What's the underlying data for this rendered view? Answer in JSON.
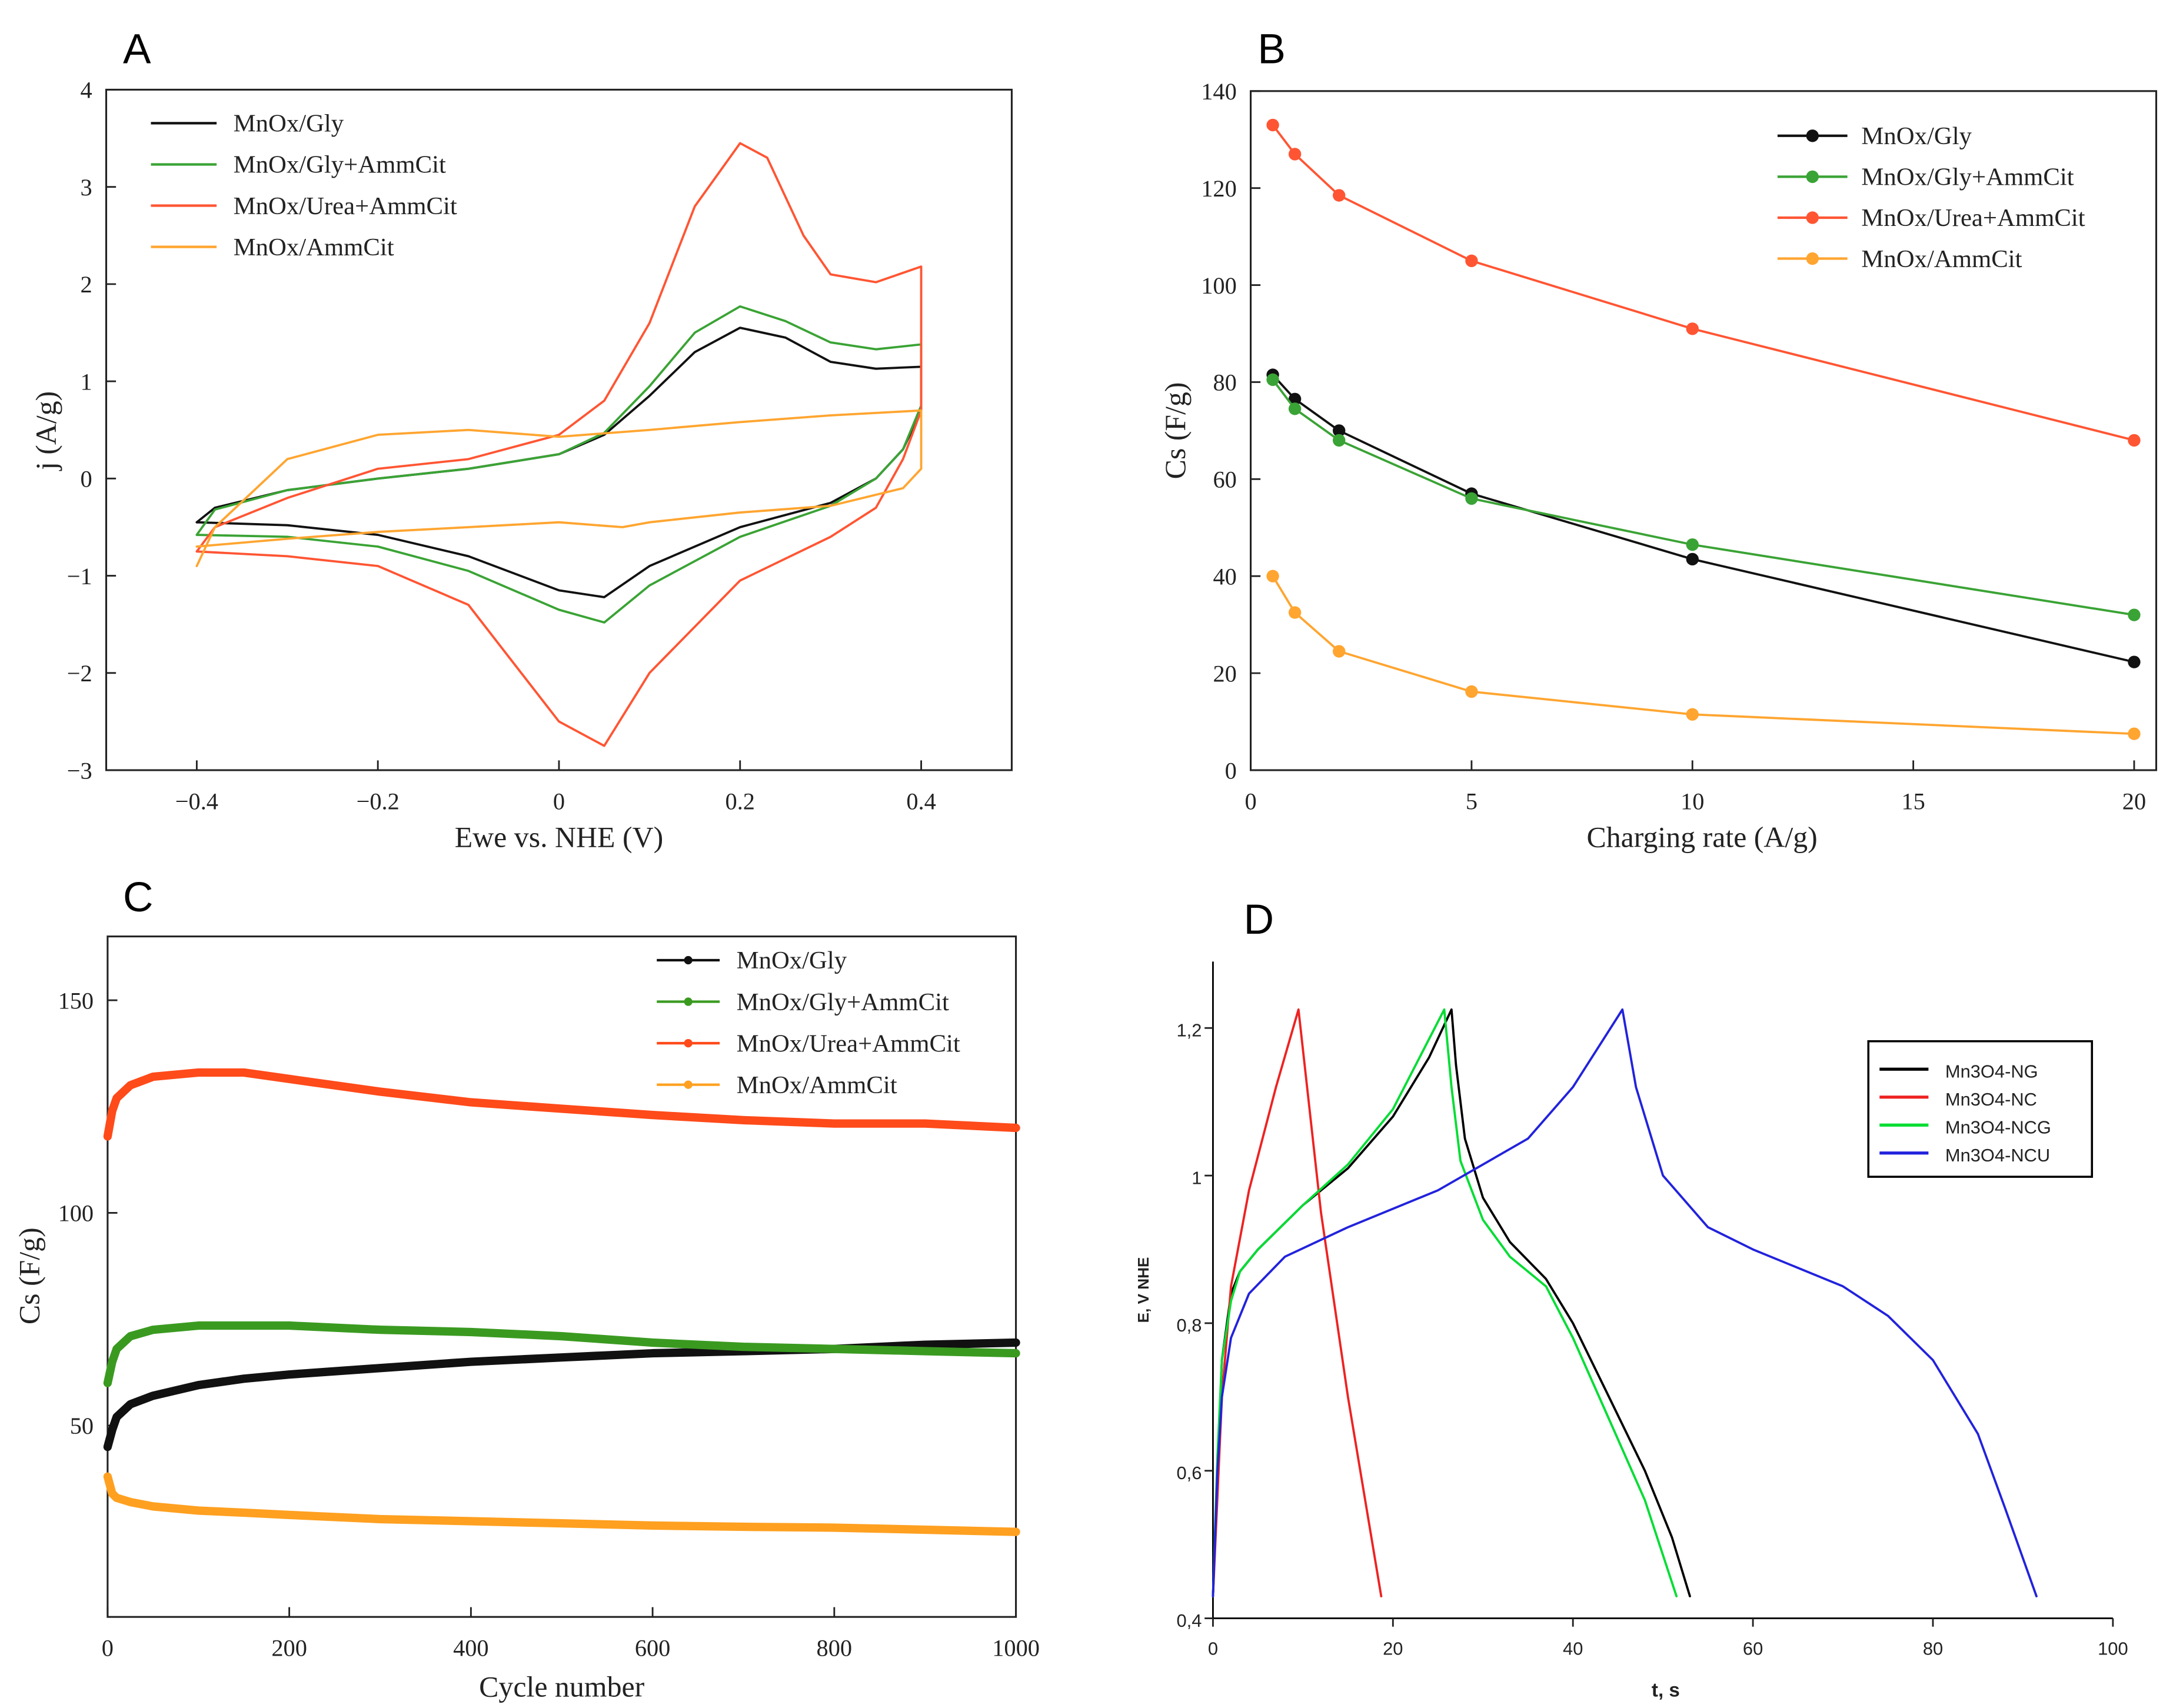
{
  "chart_data": [
    {
      "panel_label": "A",
      "type": "line",
      "xlabel": "Ewe vs. NHE (V)",
      "ylabel": "j (A/g)",
      "xlim": [
        -0.5,
        0.5
      ],
      "ylim": [
        -3,
        4
      ],
      "xticks": [
        -0.4,
        -0.2,
        0,
        0.2,
        0.4
      ],
      "xtick_labels": [
        "−0.4",
        "−0.2",
        "0",
        "0.2",
        "0.4"
      ],
      "yticks": [
        -3,
        -2,
        -1,
        0,
        1,
        2,
        3,
        4
      ],
      "ytick_labels": [
        "−3",
        "−2",
        "−1",
        "0",
        "1",
        "2",
        "3",
        "4"
      ],
      "grid": false,
      "legend": "top-left",
      "series": [
        {
          "name": "MnOx/Gly",
          "color": "#111111",
          "points": [
            [
              -0.4,
              -0.45
            ],
            [
              -0.38,
              -0.3
            ],
            [
              -0.3,
              -0.12
            ],
            [
              -0.2,
              0
            ],
            [
              -0.1,
              0.1
            ],
            [
              0,
              0.25
            ],
            [
              0.05,
              0.45
            ],
            [
              0.1,
              0.85
            ],
            [
              0.15,
              1.3
            ],
            [
              0.2,
              1.55
            ],
            [
              0.25,
              1.45
            ],
            [
              0.3,
              1.2
            ],
            [
              0.35,
              1.13
            ],
            [
              0.4,
              1.15
            ],
            [
              0.4,
              0.7
            ],
            [
              0.38,
              0.3
            ],
            [
              0.35,
              0
            ],
            [
              0.3,
              -0.25
            ],
            [
              0.2,
              -0.5
            ],
            [
              0.1,
              -0.9
            ],
            [
              0.05,
              -1.22
            ],
            [
              0,
              -1.15
            ],
            [
              -0.1,
              -0.8
            ],
            [
              -0.2,
              -0.58
            ],
            [
              -0.3,
              -0.48
            ],
            [
              -0.4,
              -0.45
            ]
          ]
        },
        {
          "name": "MnOx/Gly+AmmCit",
          "color": "#3aa335",
          "points": [
            [
              -0.4,
              -0.58
            ],
            [
              -0.38,
              -0.32
            ],
            [
              -0.3,
              -0.12
            ],
            [
              -0.2,
              0
            ],
            [
              -0.1,
              0.1
            ],
            [
              0,
              0.25
            ],
            [
              0.05,
              0.47
            ],
            [
              0.1,
              0.95
            ],
            [
              0.15,
              1.5
            ],
            [
              0.2,
              1.77
            ],
            [
              0.25,
              1.62
            ],
            [
              0.3,
              1.4
            ],
            [
              0.35,
              1.33
            ],
            [
              0.4,
              1.38
            ],
            [
              0.4,
              0.75
            ],
            [
              0.38,
              0.3
            ],
            [
              0.35,
              0
            ],
            [
              0.3,
              -0.28
            ],
            [
              0.2,
              -0.6
            ],
            [
              0.1,
              -1.1
            ],
            [
              0.05,
              -1.48
            ],
            [
              0,
              -1.35
            ],
            [
              -0.1,
              -0.95
            ],
            [
              -0.2,
              -0.7
            ],
            [
              -0.3,
              -0.6
            ],
            [
              -0.4,
              -0.58
            ]
          ]
        },
        {
          "name": "MnOx/Urea+AmmCit",
          "color": "#ff5533",
          "points": [
            [
              -0.4,
              -0.75
            ],
            [
              -0.38,
              -0.5
            ],
            [
              -0.3,
              -0.2
            ],
            [
              -0.2,
              0.1
            ],
            [
              -0.1,
              0.2
            ],
            [
              0,
              0.45
            ],
            [
              0.05,
              0.8
            ],
            [
              0.1,
              1.6
            ],
            [
              0.15,
              2.8
            ],
            [
              0.2,
              3.45
            ],
            [
              0.23,
              3.3
            ],
            [
              0.27,
              2.5
            ],
            [
              0.3,
              2.1
            ],
            [
              0.35,
              2.02
            ],
            [
              0.4,
              2.18
            ],
            [
              0.4,
              0.7
            ],
            [
              0.38,
              0.2
            ],
            [
              0.35,
              -0.3
            ],
            [
              0.3,
              -0.6
            ],
            [
              0.2,
              -1.05
            ],
            [
              0.1,
              -2.0
            ],
            [
              0.05,
              -2.75
            ],
            [
              0,
              -2.5
            ],
            [
              -0.05,
              -1.9
            ],
            [
              -0.1,
              -1.3
            ],
            [
              -0.2,
              -0.9
            ],
            [
              -0.3,
              -0.8
            ],
            [
              -0.4,
              -0.75
            ]
          ]
        },
        {
          "name": "MnOx/AmmCit",
          "color": "#ffa530",
          "points": [
            [
              -0.4,
              -0.9
            ],
            [
              -0.38,
              -0.5
            ],
            [
              -0.3,
              0.2
            ],
            [
              -0.2,
              0.45
            ],
            [
              -0.1,
              0.5
            ],
            [
              0,
              0.43
            ],
            [
              0.1,
              0.5
            ],
            [
              0.2,
              0.58
            ],
            [
              0.3,
              0.65
            ],
            [
              0.4,
              0.7
            ],
            [
              0.4,
              0.1
            ],
            [
              0.38,
              -0.1
            ],
            [
              0.3,
              -0.28
            ],
            [
              0.2,
              -0.35
            ],
            [
              0.1,
              -0.45
            ],
            [
              0.07,
              -0.5
            ],
            [
              0,
              -0.45
            ],
            [
              -0.1,
              -0.5
            ],
            [
              -0.2,
              -0.55
            ],
            [
              -0.3,
              -0.62
            ],
            [
              -0.4,
              -0.7
            ]
          ]
        }
      ]
    },
    {
      "panel_label": "B",
      "type": "line",
      "xlabel": "Charging rate (A/g)",
      "ylabel": "Cs (F/g)",
      "xlim": [
        0,
        20.5
      ],
      "ylim": [
        0,
        140
      ],
      "xticks": [
        0,
        5,
        10,
        15,
        20
      ],
      "xtick_labels": [
        "0",
        "5",
        "10",
        "15",
        "20"
      ],
      "yticks": [
        0,
        20,
        40,
        60,
        80,
        100,
        120,
        140
      ],
      "ytick_labels": [
        "0",
        "20",
        "40",
        "60",
        "80",
        "100",
        "120",
        "140"
      ],
      "grid": false,
      "legend": "top-right",
      "x": [
        0.5,
        1,
        2,
        5,
        10,
        20
      ],
      "series": [
        {
          "name": "MnOx/Gly",
          "color": "#111111",
          "values": [
            81.5,
            76.5,
            70,
            57,
            43.5,
            22.3
          ]
        },
        {
          "name": "MnOx/Gly+AmmCit",
          "color": "#3aa335",
          "values": [
            80.5,
            74.5,
            68,
            56,
            46.5,
            32
          ]
        },
        {
          "name": "MnOx/Urea+AmmCit",
          "color": "#ff5533",
          "values": [
            133,
            127,
            118.5,
            105,
            91,
            68
          ]
        },
        {
          "name": "MnOx/AmmCit",
          "color": "#ffa530",
          "values": [
            40,
            32.5,
            24.5,
            16.2,
            11.5,
            7.5
          ]
        }
      ]
    },
    {
      "panel_label": "C",
      "type": "line",
      "xlabel": "Cycle number",
      "ylabel": "Cs (F/g)",
      "xlim": [
        0,
        1000
      ],
      "ylim": [
        5,
        165
      ],
      "xticks": [
        0,
        200,
        400,
        600,
        800,
        1000
      ],
      "xtick_labels": [
        "0",
        "200",
        "400",
        "600",
        "800",
        "1000"
      ],
      "yticks": [
        50,
        100,
        150
      ],
      "ytick_labels": [
        "50",
        "100",
        "150"
      ],
      "grid": false,
      "legend": "top-right",
      "x": [
        0,
        5,
        10,
        25,
        50,
        100,
        150,
        200,
        300,
        400,
        500,
        600,
        700,
        800,
        900,
        1000
      ],
      "series": [
        {
          "name": "MnOx/Gly",
          "color": "#111111",
          "values": [
            45,
            49,
            52,
            55,
            57,
            59.5,
            61,
            62,
            63.5,
            65,
            66,
            67,
            67.5,
            68,
            69,
            69.5
          ]
        },
        {
          "name": "MnOx/Gly+AmmCit",
          "color": "#3a9a20",
          "values": [
            60,
            65,
            68,
            71,
            72.5,
            73.5,
            73.5,
            73.5,
            72.5,
            72,
            71,
            69.5,
            68.5,
            68,
            67.5,
            67
          ]
        },
        {
          "name": "MnOx/Urea+AmmCit",
          "color": "#ff4a1a",
          "values": [
            118,
            124,
            127,
            130,
            132,
            133,
            133,
            131.5,
            128.5,
            126,
            124.5,
            123,
            121.8,
            121,
            121,
            120
          ]
        },
        {
          "name": "MnOx/AmmCit",
          "color": "#ffa020",
          "values": [
            38,
            34,
            33,
            32,
            31,
            30,
            29.5,
            29,
            28,
            27.5,
            27,
            26.5,
            26.2,
            26,
            25.5,
            25
          ]
        }
      ]
    },
    {
      "panel_label": "D",
      "type": "line",
      "xlabel": "t, s",
      "ylabel": "E, V NHE",
      "xlim": [
        0,
        100
      ],
      "ylim": [
        0.4,
        1.29
      ],
      "xticks": [
        0,
        20,
        40,
        60,
        80,
        100
      ],
      "xtick_labels": [
        "0",
        "20",
        "40",
        "60",
        "80",
        "100"
      ],
      "yticks": [
        0.4,
        0.6,
        0.8,
        1.0,
        1.2
      ],
      "ytick_labels": [
        "0,4",
        "0,6",
        "0,8",
        "1",
        "1,2"
      ],
      "grid": false,
      "legend": "top-right",
      "series": [
        {
          "name": "Mn3O4-NG",
          "color": "#000000",
          "points": [
            [
              0,
              0.43
            ],
            [
              0.5,
              0.6
            ],
            [
              1,
              0.75
            ],
            [
              2,
              0.84
            ],
            [
              3,
              0.87
            ],
            [
              5,
              0.9
            ],
            [
              10,
              0.96
            ],
            [
              15,
              1.01
            ],
            [
              20,
              1.08
            ],
            [
              24,
              1.16
            ],
            [
              26.5,
              1.225
            ],
            [
              27,
              1.15
            ],
            [
              28,
              1.05
            ],
            [
              30,
              0.97
            ],
            [
              33,
              0.91
            ],
            [
              37,
              0.86
            ],
            [
              40,
              0.8
            ],
            [
              44,
              0.7
            ],
            [
              48,
              0.6
            ],
            [
              51,
              0.51
            ],
            [
              53,
              0.43
            ]
          ]
        },
        {
          "name": "Mn3O4-NC",
          "color": "#ee2222",
          "points": [
            [
              0,
              0.43
            ],
            [
              1,
              0.7
            ],
            [
              2,
              0.85
            ],
            [
              4,
              0.98
            ],
            [
              7,
              1.12
            ],
            [
              9.5,
              1.225
            ],
            [
              12,
              0.95
            ],
            [
              15,
              0.7
            ],
            [
              18.7,
              0.43
            ]
          ]
        },
        {
          "name": "Mn3O4-NCG",
          "color": "#00dd33",
          "points": [
            [
              0,
              0.43
            ],
            [
              0.5,
              0.62
            ],
            [
              1,
              0.75
            ],
            [
              2,
              0.83
            ],
            [
              3,
              0.87
            ],
            [
              5,
              0.9
            ],
            [
              10,
              0.96
            ],
            [
              15,
              1.015
            ],
            [
              20,
              1.09
            ],
            [
              25.7,
              1.225
            ],
            [
              26.5,
              1.12
            ],
            [
              27.5,
              1.02
            ],
            [
              30,
              0.94
            ],
            [
              33,
              0.89
            ],
            [
              37,
              0.85
            ],
            [
              40,
              0.78
            ],
            [
              44,
              0.67
            ],
            [
              48,
              0.56
            ],
            [
              51.5,
              0.43
            ]
          ]
        },
        {
          "name": "Mn3O4-NCU",
          "color": "#2222dd",
          "points": [
            [
              0,
              0.43
            ],
            [
              0.5,
              0.6
            ],
            [
              1,
              0.7
            ],
            [
              2,
              0.78
            ],
            [
              4,
              0.84
            ],
            [
              8,
              0.89
            ],
            [
              15,
              0.93
            ],
            [
              25,
              0.98
            ],
            [
              35,
              1.05
            ],
            [
              40,
              1.12
            ],
            [
              45.5,
              1.225
            ],
            [
              47,
              1.12
            ],
            [
              50,
              1.0
            ],
            [
              55,
              0.93
            ],
            [
              60,
              0.9
            ],
            [
              70,
              0.85
            ],
            [
              75,
              0.81
            ],
            [
              80,
              0.75
            ],
            [
              85,
              0.65
            ],
            [
              88,
              0.55
            ],
            [
              91.5,
              0.43
            ]
          ]
        }
      ]
    }
  ]
}
